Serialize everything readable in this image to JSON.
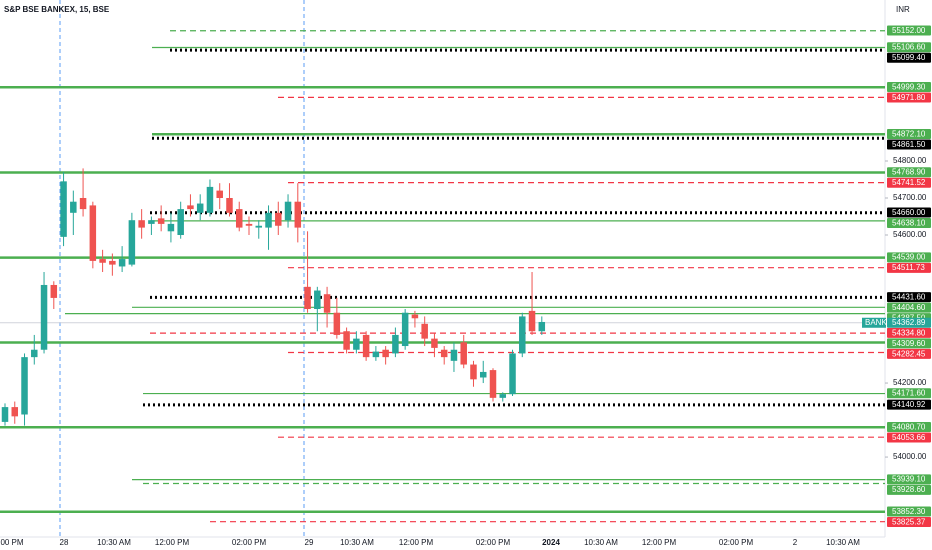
{
  "chart_data": {
    "type": "candlestick",
    "title": "S&P BSE BANKEX, 15, BSE",
    "currency": "INR",
    "ylim": [
      53784,
      55235
    ],
    "yticks": [
      {
        "value": 54800,
        "label": "54800.00"
      },
      {
        "value": 54700,
        "label": "54700.00"
      },
      {
        "value": 54600,
        "label": "54600.00"
      },
      {
        "value": 54200,
        "label": "54200.00"
      },
      {
        "value": 54000,
        "label": "54000.00"
      }
    ],
    "xticks": [
      "00 PM",
      "28",
      "10:30 AM",
      "12:00 PM",
      "02:00 PM",
      "29",
      "10:30 AM",
      "12:00 PM",
      "02:00 PM",
      "2024",
      "10:30 AM",
      "12:00 PM",
      "02:00 PM",
      "2",
      "10:30 AM"
    ],
    "up_color": "#26a69a",
    "down_color": "#ef5350",
    "open": [
      54095,
      54135,
      54115,
      54270,
      54290,
      54465,
      54595,
      54660,
      54700,
      54680,
      54535,
      54530,
      54515,
      54520,
      54640,
      54630,
      54645,
      54610,
      54600,
      54680,
      54660,
      54660,
      54720,
      54700,
      54670,
      54630,
      54620,
      54620,
      54660,
      54640,
      54690,
      54460,
      54400,
      54440,
      54390,
      54340,
      54290,
      54330,
      54270,
      54290,
      54280,
      54300,
      54385,
      54360,
      54320,
      54290,
      54260,
      54310,
      54250,
      54215,
      54235,
      54160,
      54170,
      54280,
      54395,
      54340
    ],
    "high": [
      54145,
      54150,
      54280,
      54330,
      54500,
      54475,
      54770,
      54720,
      54780,
      54690,
      54560,
      54550,
      54570,
      54660,
      54670,
      54650,
      54680,
      54660,
      54690,
      54710,
      54710,
      54750,
      54740,
      54740,
      54690,
      54650,
      54640,
      54680,
      54690,
      54710,
      54740,
      54610,
      54460,
      54460,
      54430,
      54350,
      54340,
      54340,
      54300,
      54300,
      54350,
      54400,
      54395,
      54380,
      54335,
      54300,
      54310,
      54330,
      54260,
      54260,
      54240,
      54175,
      54290,
      54390,
      54500,
      54380
    ],
    "low": [
      54085,
      54090,
      54085,
      54250,
      54280,
      54400,
      54570,
      54600,
      54650,
      54510,
      54500,
      54490,
      54500,
      54515,
      54590,
      54600,
      54610,
      54580,
      54590,
      54650,
      54640,
      54650,
      54670,
      54650,
      54610,
      54600,
      54590,
      54560,
      54600,
      54620,
      54580,
      54390,
      54340,
      54350,
      54320,
      54280,
      54280,
      54260,
      54260,
      54250,
      54270,
      54290,
      54350,
      54300,
      54270,
      54250,
      54230,
      54240,
      54190,
      54200,
      54150,
      54150,
      54165,
      54270,
      54330,
      54330
    ],
    "close": [
      54135,
      54110,
      54270,
      54290,
      54465,
      54430,
      54745,
      54690,
      54670,
      54530,
      54525,
      54520,
      54535,
      54640,
      54620,
      54640,
      54630,
      54630,
      54670,
      54670,
      54685,
      54730,
      54700,
      54660,
      54620,
      54625,
      54625,
      54660,
      54625,
      54690,
      54620,
      54400,
      54450,
      54390,
      54330,
      54290,
      54320,
      54270,
      54285,
      54270,
      54330,
      54390,
      54375,
      54320,
      54295,
      54270,
      54290,
      54250,
      54210,
      54230,
      54160,
      54170,
      54280,
      54380,
      54340,
      54365
    ],
    "last": {
      "symbol": "BANK",
      "value": 54362.89,
      "label": "54362.89",
      "color": "#26a69a"
    },
    "levels": [
      {
        "value": 55152,
        "label": "55152.00",
        "style": "dashed",
        "color": "#4caf50"
      },
      {
        "value": 55106.6,
        "label": "55106.60",
        "style": "thin",
        "color": "#4caf50"
      },
      {
        "value": 55099.4,
        "label": "55099.40",
        "style": "dotted",
        "color": "#000000"
      },
      {
        "value": 54999.3,
        "label": "54999.30",
        "style": "thick",
        "color": "#4caf50"
      },
      {
        "value": 54971.8,
        "label": "54971.80",
        "style": "dashed",
        "color": "#f23645"
      },
      {
        "value": 54872.1,
        "label": "54872.10",
        "style": "thick",
        "color": "#4caf50"
      },
      {
        "value": 54861.5,
        "label": "54861.50",
        "style": "dotted",
        "color": "#000000"
      },
      {
        "value": 54768.9,
        "label": "54768.90",
        "style": "thick",
        "color": "#4caf50"
      },
      {
        "value": 54741.52,
        "label": "54741.52",
        "style": "dashed",
        "color": "#f23645"
      },
      {
        "value": 54660,
        "label": "54660.00",
        "style": "dotted",
        "color": "#000000"
      },
      {
        "value": 54638.1,
        "label": "54638.10",
        "style": "thin",
        "color": "#4caf50"
      },
      {
        "value": 54539,
        "label": "54539.00",
        "style": "thick",
        "color": "#4caf50"
      },
      {
        "value": 54511.73,
        "label": "54511.73",
        "style": "dashed",
        "color": "#f23645"
      },
      {
        "value": 54431.6,
        "label": "54431.60",
        "style": "dotted",
        "color": "#000000"
      },
      {
        "value": 54404.6,
        "label": "54404.60",
        "style": "thin",
        "color": "#4caf50"
      },
      {
        "value": 54387.5,
        "label": "54387.50",
        "style": "thin",
        "color": "#4caf50"
      },
      {
        "value": 54334.8,
        "label": "54334.80",
        "style": "dashed",
        "color": "#f23645"
      },
      {
        "value": 54309.6,
        "label": "54309.60",
        "style": "thick",
        "color": "#4caf50"
      },
      {
        "value": 54282.45,
        "label": "54282.45",
        "style": "dashed",
        "color": "#f23645"
      },
      {
        "value": 54171.6,
        "label": "54171.60",
        "style": "thin",
        "color": "#4caf50"
      },
      {
        "value": 54140.92,
        "label": "54140.92",
        "style": "dotted",
        "color": "#000000"
      },
      {
        "value": 54080.7,
        "label": "54080.70",
        "style": "thick",
        "color": "#4caf50"
      },
      {
        "value": 54053.66,
        "label": "54053.66",
        "style": "dashed",
        "color": "#f23645"
      },
      {
        "value": 53939.1,
        "label": "53939.10",
        "style": "thin",
        "color": "#4caf50"
      },
      {
        "value": 53928.6,
        "label": "53928.60",
        "style": "dashed",
        "color": "#4caf50"
      },
      {
        "value": 53852.3,
        "label": "53852.30",
        "style": "thick",
        "color": "#4caf50"
      },
      {
        "value": 53825.37,
        "label": "53825.37",
        "style": "dashed",
        "color": "#f23645"
      }
    ]
  }
}
